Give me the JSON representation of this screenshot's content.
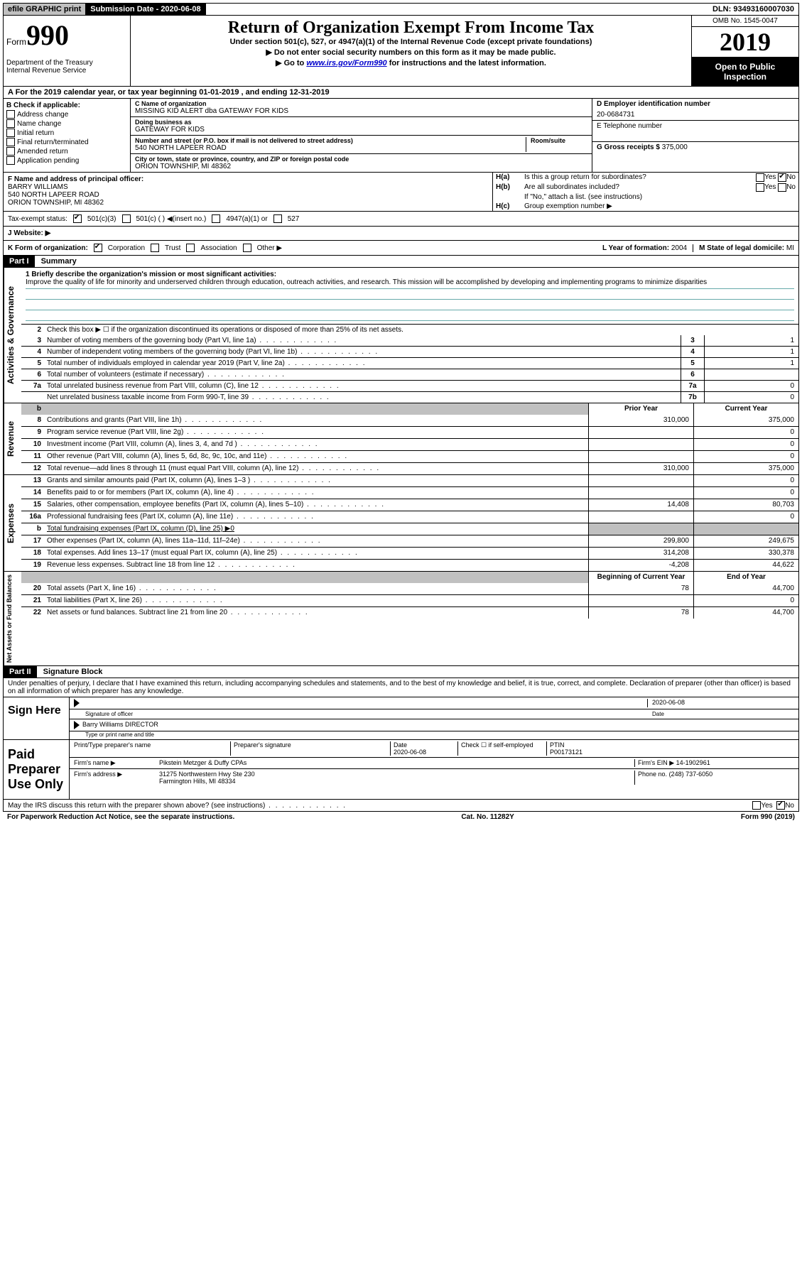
{
  "topbar": {
    "efile": "efile GRAPHIC print",
    "sub_label": "Submission Date - 2020-06-08",
    "dln": "DLN: 93493160007030"
  },
  "header": {
    "form_word": "Form",
    "form_num": "990",
    "dept": "Department of the Treasury\nInternal Revenue Service",
    "title": "Return of Organization Exempt From Income Tax",
    "subtitle": "Under section 501(c), 527, or 4947(a)(1) of the Internal Revenue Code (except private foundations)",
    "warn1": "▶ Do not enter social security numbers on this form as it may be made public.",
    "warn2_pre": "▶ Go to ",
    "warn2_link": "www.irs.gov/Form990",
    "warn2_post": " for instructions and the latest information.",
    "omb": "OMB No. 1545-0047",
    "year": "2019",
    "inspection": "Open to Public Inspection"
  },
  "sectionA": "A  For the 2019 calendar year, or tax year beginning 01-01-2019   , and ending 12-31-2019",
  "blockB": {
    "title": "B Check if applicable:",
    "items": [
      "Address change",
      "Name change",
      "Initial return",
      "Final return/terminated",
      "Amended return",
      "Application pending"
    ]
  },
  "blockC": {
    "name_label": "C Name of organization",
    "name": "MISSING KID ALERT dba GATEWAY FOR KIDS",
    "dba_label": "Doing business as",
    "dba": "GATEWAY FOR KIDS",
    "addr_label": "Number and street (or P.O. box if mail is not delivered to street address)",
    "room_label": "Room/suite",
    "addr": "540 NORTH LAPEER ROAD",
    "city_label": "City or town, state or province, country, and ZIP or foreign postal code",
    "city": "ORION TOWNSHIP, MI  48362"
  },
  "blockD": {
    "ein_label": "D Employer identification number",
    "ein": "20-0684731",
    "tel_label": "E Telephone number",
    "tel": "",
    "gross_label": "G Gross receipts $",
    "gross": "375,000"
  },
  "blockF": {
    "label": "F  Name and address of principal officer:",
    "name": "BARRY WILLIAMS",
    "addr1": "540 NORTH LAPEER ROAD",
    "addr2": "ORION TOWNSHIP, MI  48362"
  },
  "blockH": {
    "a": "Is this a group return for subordinates?",
    "b": "Are all subordinates included?",
    "b_note": "If \"No,\" attach a list. (see instructions)",
    "c": "Group exemption number ▶"
  },
  "statusRow": {
    "label": "Tax-exempt status:",
    "opt1": "501(c)(3)",
    "opt2": "501(c) (  ) ◀(insert no.)",
    "opt3": "4947(a)(1) or",
    "opt4": "527"
  },
  "website": {
    "label": "J   Website: ▶"
  },
  "kRow": {
    "label": "K Form of organization:",
    "opts": [
      "Corporation",
      "Trust",
      "Association",
      "Other ▶"
    ],
    "l_label": "L Year of formation:",
    "l_val": "2004",
    "m_label": "M State of legal domicile:",
    "m_val": "MI"
  },
  "part1": {
    "header": "Part I",
    "title": "Summary",
    "q1_label": "1  Briefly describe the organization's mission or most significant activities:",
    "mission": "Improve the quality of life for minority and underserved children through education, outreach activities, and research. This mission will be accomplished by developing and implementing programs to minimize disparities",
    "q2": "Check this box ▶ ☐  if the organization discontinued its operations or disposed of more than 25% of its net assets.",
    "lines_gov": [
      {
        "n": "3",
        "t": "Number of voting members of the governing body (Part VI, line 1a)",
        "b": "3",
        "v": "1"
      },
      {
        "n": "4",
        "t": "Number of independent voting members of the governing body (Part VI, line 1b)",
        "b": "4",
        "v": "1"
      },
      {
        "n": "5",
        "t": "Total number of individuals employed in calendar year 2019 (Part V, line 2a)",
        "b": "5",
        "v": "1"
      },
      {
        "n": "6",
        "t": "Total number of volunteers (estimate if necessary)",
        "b": "6",
        "v": ""
      },
      {
        "n": "7a",
        "t": "Total unrelated business revenue from Part VIII, column (C), line 12",
        "b": "7a",
        "v": "0"
      },
      {
        "n": "",
        "t": "Net unrelated business taxable income from Form 990-T, line 39",
        "b": "7b",
        "v": "0"
      }
    ],
    "col_prior": "Prior Year",
    "col_current": "Current Year",
    "lines_rev": [
      {
        "n": "8",
        "t": "Contributions and grants (Part VIII, line 1h)",
        "p": "310,000",
        "c": "375,000"
      },
      {
        "n": "9",
        "t": "Program service revenue (Part VIII, line 2g)",
        "p": "",
        "c": "0"
      },
      {
        "n": "10",
        "t": "Investment income (Part VIII, column (A), lines 3, 4, and 7d )",
        "p": "",
        "c": "0"
      },
      {
        "n": "11",
        "t": "Other revenue (Part VIII, column (A), lines 5, 6d, 8c, 9c, 10c, and 11e)",
        "p": "",
        "c": "0"
      },
      {
        "n": "12",
        "t": "Total revenue—add lines 8 through 11 (must equal Part VIII, column (A), line 12)",
        "p": "310,000",
        "c": "375,000"
      }
    ],
    "lines_exp": [
      {
        "n": "13",
        "t": "Grants and similar amounts paid (Part IX, column (A), lines 1–3 )",
        "p": "",
        "c": "0"
      },
      {
        "n": "14",
        "t": "Benefits paid to or for members (Part IX, column (A), line 4)",
        "p": "",
        "c": "0"
      },
      {
        "n": "15",
        "t": "Salaries, other compensation, employee benefits (Part IX, column (A), lines 5–10)",
        "p": "14,408",
        "c": "80,703"
      },
      {
        "n": "16a",
        "t": "Professional fundraising fees (Part IX, column (A), line 11e)",
        "p": "",
        "c": "0"
      },
      {
        "n": "b",
        "t": "Total fundraising expenses (Part IX, column (D), line 25) ▶0",
        "p": "SHADE",
        "c": "SHADE"
      },
      {
        "n": "17",
        "t": "Other expenses (Part IX, column (A), lines 11a–11d, 11f–24e)",
        "p": "299,800",
        "c": "249,675"
      },
      {
        "n": "18",
        "t": "Total expenses. Add lines 13–17 (must equal Part IX, column (A), line 25)",
        "p": "314,208",
        "c": "330,378"
      },
      {
        "n": "19",
        "t": "Revenue less expenses. Subtract line 18 from line 12",
        "p": "-4,208",
        "c": "44,622"
      }
    ],
    "col_boy": "Beginning of Current Year",
    "col_eoy": "End of Year",
    "lines_net": [
      {
        "n": "20",
        "t": "Total assets (Part X, line 16)",
        "p": "78",
        "c": "44,700"
      },
      {
        "n": "21",
        "t": "Total liabilities (Part X, line 26)",
        "p": "",
        "c": "0"
      },
      {
        "n": "22",
        "t": "Net assets or fund balances. Subtract line 21 from line 20",
        "p": "78",
        "c": "44,700"
      }
    ],
    "vlab_gov": "Activities & Governance",
    "vlab_rev": "Revenue",
    "vlab_exp": "Expenses",
    "vlab_net": "Net Assets or Fund Balances"
  },
  "part2": {
    "header": "Part II",
    "title": "Signature Block",
    "perjury": "Under penalties of perjury, I declare that I have examined this return, including accompanying schedules and statements, and to the best of my knowledge and belief, it is true, correct, and complete. Declaration of preparer (other than officer) is based on all information of which preparer has any knowledge.",
    "sign_here": "Sign Here",
    "sig_officer_label": "Signature of officer",
    "date_label": "Date",
    "sig_date": "2020-06-08",
    "typed_name": "Barry Williams  DIRECTOR",
    "typed_label": "Type or print name and title",
    "paid": "Paid Preparer Use Only",
    "pp_name_label": "Print/Type preparer's name",
    "pp_sig_label": "Preparer's signature",
    "pp_date_label": "Date",
    "pp_date": "2020-06-08",
    "pp_check_label": "Check ☐ if self-employed",
    "ptin_label": "PTIN",
    "ptin": "P00173121",
    "firm_name_label": "Firm's name    ▶",
    "firm_name": "Pikstein Metzger & Duffy CPAs",
    "firm_ein_label": "Firm's EIN ▶",
    "firm_ein": "14-1902961",
    "firm_addr_label": "Firm's address ▶",
    "firm_addr1": "31275 Northwestern Hwy Ste 230",
    "firm_addr2": "Farmington Hills, MI  48334",
    "phone_label": "Phone no.",
    "phone": "(248) 737-6050",
    "discuss": "May the IRS discuss this return with the preparer shown above? (see instructions)"
  },
  "footer": {
    "left": "For Paperwork Reduction Act Notice, see the separate instructions.",
    "mid": "Cat. No. 11282Y",
    "right": "Form 990 (2019)"
  },
  "yesno": {
    "yes": "Yes",
    "no": "No"
  }
}
